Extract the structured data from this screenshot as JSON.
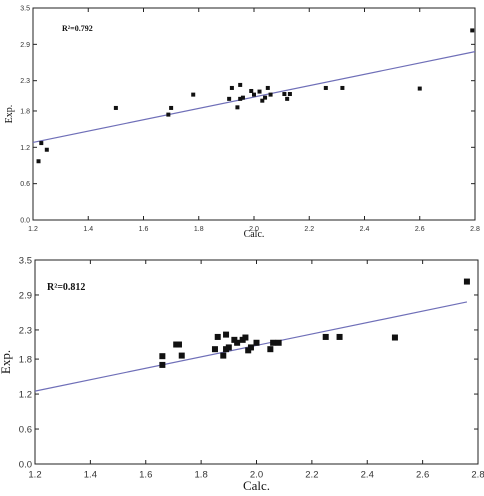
{
  "chart_data": [
    {
      "type": "scatter",
      "title": "",
      "annotation": "R²=0.792",
      "xlabel": "Calc.",
      "ylabel": "Exp.",
      "xlim": [
        1.2,
        2.8
      ],
      "ylim": [
        0.0,
        3.5
      ],
      "x_ticks": [
        "1.2",
        "1.4",
        "1.6",
        "1.8",
        "2.0",
        "2.2",
        "2.4",
        "2.6",
        "2.8"
      ],
      "y_ticks": [
        "0.0",
        "0.6",
        "1.2",
        "1.8",
        "2.3",
        "2.9",
        "3.5"
      ],
      "points": [
        {
          "x": 1.22,
          "y": 0.97
        },
        {
          "x": 1.23,
          "y": 1.27
        },
        {
          "x": 1.25,
          "y": 1.16
        },
        {
          "x": 1.5,
          "y": 1.85
        },
        {
          "x": 1.69,
          "y": 1.74
        },
        {
          "x": 1.7,
          "y": 1.85
        },
        {
          "x": 1.78,
          "y": 2.07
        },
        {
          "x": 1.91,
          "y": 2.0
        },
        {
          "x": 1.92,
          "y": 2.18
        },
        {
          "x": 1.94,
          "y": 1.86
        },
        {
          "x": 1.95,
          "y": 2.0
        },
        {
          "x": 1.95,
          "y": 2.23
        },
        {
          "x": 1.96,
          "y": 2.02
        },
        {
          "x": 1.99,
          "y": 2.13
        },
        {
          "x": 2.0,
          "y": 2.07
        },
        {
          "x": 2.02,
          "y": 2.12
        },
        {
          "x": 2.03,
          "y": 1.97
        },
        {
          "x": 2.04,
          "y": 2.02
        },
        {
          "x": 2.05,
          "y": 2.18
        },
        {
          "x": 2.06,
          "y": 2.07
        },
        {
          "x": 2.11,
          "y": 2.08
        },
        {
          "x": 2.12,
          "y": 2.0
        },
        {
          "x": 2.13,
          "y": 2.08
        },
        {
          "x": 2.26,
          "y": 2.18
        },
        {
          "x": 2.32,
          "y": 2.18
        },
        {
          "x": 2.6,
          "y": 2.17
        },
        {
          "x": 2.79,
          "y": 3.13
        }
      ],
      "fit_line": {
        "x": [
          1.2,
          2.8
        ],
        "y": [
          1.28,
          2.78
        ]
      },
      "grid": false
    },
    {
      "type": "scatter",
      "title": "",
      "annotation": "R²=0.812",
      "xlabel": "Calc.",
      "ylabel": "Exp.",
      "xlim": [
        1.2,
        2.8
      ],
      "ylim": [
        0.0,
        3.5
      ],
      "x_ticks": [
        "1.2",
        "1.4",
        "1.6",
        "1.8",
        "2.0",
        "2.2",
        "2.4",
        "2.6",
        "2.8"
      ],
      "y_ticks": [
        "0.0",
        "0.6",
        "1.2",
        "1.8",
        "2.3",
        "2.9",
        "3.5"
      ],
      "points": [
        {
          "x": 1.66,
          "y": 1.85
        },
        {
          "x": 1.66,
          "y": 1.7
        },
        {
          "x": 1.71,
          "y": 2.05
        },
        {
          "x": 1.72,
          "y": 2.05
        },
        {
          "x": 1.73,
          "y": 1.86
        },
        {
          "x": 1.85,
          "y": 1.97
        },
        {
          "x": 1.86,
          "y": 2.18
        },
        {
          "x": 1.88,
          "y": 1.86
        },
        {
          "x": 1.89,
          "y": 2.22
        },
        {
          "x": 1.89,
          "y": 1.97
        },
        {
          "x": 1.9,
          "y": 2.0
        },
        {
          "x": 1.92,
          "y": 2.13
        },
        {
          "x": 1.93,
          "y": 2.08
        },
        {
          "x": 1.95,
          "y": 2.13
        },
        {
          "x": 1.96,
          "y": 2.17
        },
        {
          "x": 1.97,
          "y": 1.95
        },
        {
          "x": 1.98,
          "y": 2.0
        },
        {
          "x": 2.0,
          "y": 2.08
        },
        {
          "x": 2.05,
          "y": 1.97
        },
        {
          "x": 2.06,
          "y": 2.08
        },
        {
          "x": 2.08,
          "y": 2.08
        },
        {
          "x": 2.25,
          "y": 2.18
        },
        {
          "x": 2.3,
          "y": 2.18
        },
        {
          "x": 2.5,
          "y": 2.17
        },
        {
          "x": 2.76,
          "y": 3.13
        }
      ],
      "fit_line": {
        "x": [
          1.2,
          2.76
        ],
        "y": [
          1.25,
          2.78
        ]
      },
      "grid": false
    }
  ]
}
